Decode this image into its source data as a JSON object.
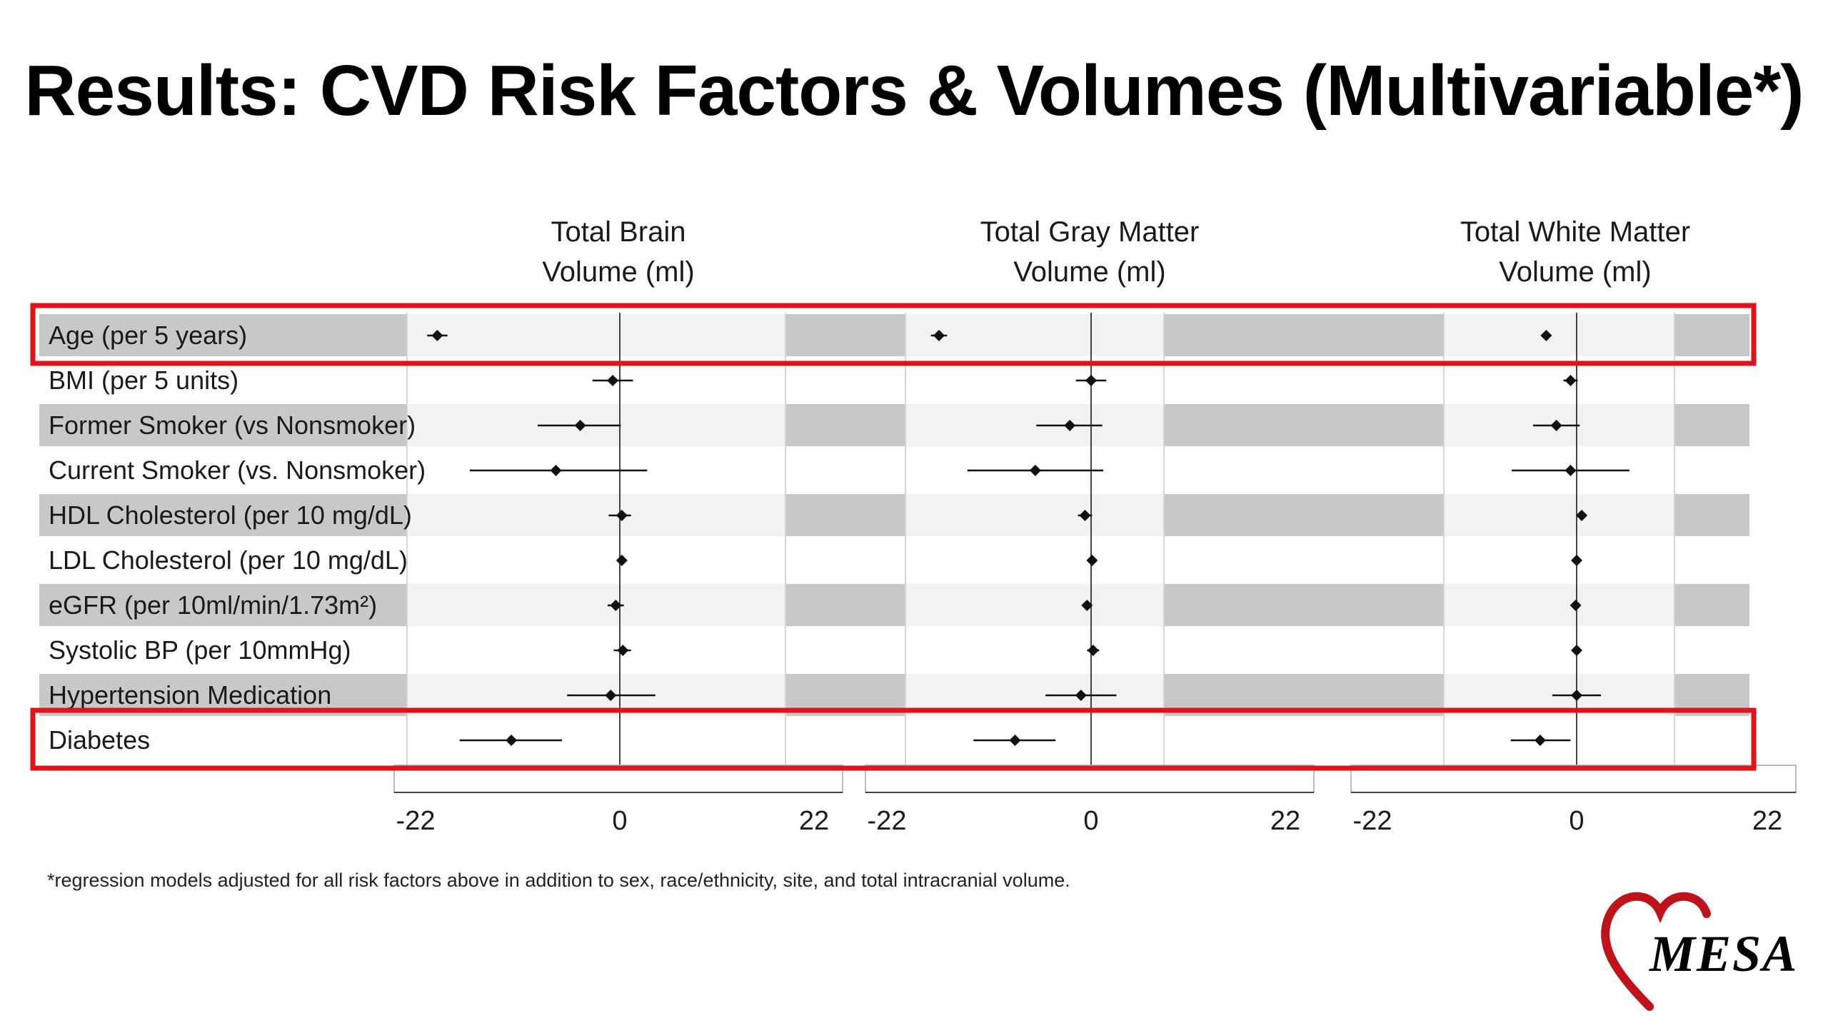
{
  "title": "Results: CVD Risk Factors & Volumes (Multivariable*)",
  "footnote": "*regression models adjusted for all risk factors above in addition to sex, race/ethnicity, site, and total intracranial volume.",
  "logo": {
    "text": "MESA",
    "heart_color": "#c0121a"
  },
  "colors": {
    "highlight": "#e0121a",
    "band": "#c8c8c8",
    "band_light": "#f2f2f2",
    "marker": "#111111"
  },
  "chart_data": {
    "type": "forest",
    "grid": false,
    "rows": [
      "Age (per 5 years)",
      "BMI (per 5 units)",
      "Former Smoker (vs Nonsmoker)",
      "Current Smoker (vs. Nonsmoker)",
      "HDL Cholesterol (per 10 mg/dL)",
      "LDL Cholesterol (per 10 mg/dL)",
      "eGFR (per 10ml/min/1.73m²)",
      "Systolic BP (per 10mmHg)",
      "Hypertension Medication",
      "Diabetes"
    ],
    "highlighted_rows": [
      "Age (per 5 years)",
      "Diabetes"
    ],
    "panels": [
      {
        "title_lines": [
          "Total Brain",
          "Volume (ml)"
        ],
        "xlim": [
          -22,
          22
        ],
        "ticks": [
          -22,
          0,
          22
        ],
        "estimates": [
          -18.0,
          -0.7,
          -3.9,
          -6.3,
          0.2,
          0.2,
          -0.4,
          0.3,
          -0.9,
          -10.7
        ],
        "ci_low": [
          -19.0,
          -2.7,
          -8.1,
          -14.8,
          -1.1,
          0.0,
          -1.2,
          -0.6,
          -5.2,
          -15.8
        ],
        "ci_high": [
          -17.0,
          1.3,
          0.1,
          2.7,
          1.1,
          0.4,
          0.4,
          1.1,
          3.5,
          -5.7
        ]
      },
      {
        "title_lines": [
          "Total Gray Matter",
          "Volume (ml)"
        ],
        "xlim": [
          -22,
          22
        ],
        "ticks": [
          -22,
          0,
          22
        ],
        "estimates": [
          -15.0,
          0.0,
          -2.1,
          -5.5,
          -0.6,
          0.1,
          -0.4,
          0.2,
          -1.0,
          -7.5
        ],
        "ci_low": [
          -15.8,
          -1.5,
          -5.4,
          -12.2,
          -1.3,
          -0.1,
          -0.9,
          -0.4,
          -4.5,
          -11.6
        ],
        "ci_high": [
          -14.2,
          1.5,
          1.1,
          1.2,
          0.1,
          0.3,
          0.1,
          0.8,
          2.5,
          -3.5
        ]
      },
      {
        "title_lines": [
          "Total White Matter",
          "Volume (ml)"
        ],
        "xlim": [
          -22,
          22
        ],
        "ticks": [
          -22,
          0,
          22
        ],
        "estimates": [
          -3.0,
          -0.6,
          -2.0,
          -0.6,
          0.5,
          0.0,
          -0.1,
          0.0,
          0.0,
          -3.6
        ],
        "ci_low": [
          -3.5,
          -1.3,
          -4.3,
          -6.4,
          0.2,
          -0.1,
          -0.3,
          -0.1,
          -2.4,
          -6.5
        ],
        "ci_high": [
          -2.5,
          0.1,
          0.3,
          5.2,
          0.8,
          0.1,
          0.1,
          0.1,
          2.4,
          -0.6
        ]
      }
    ]
  }
}
